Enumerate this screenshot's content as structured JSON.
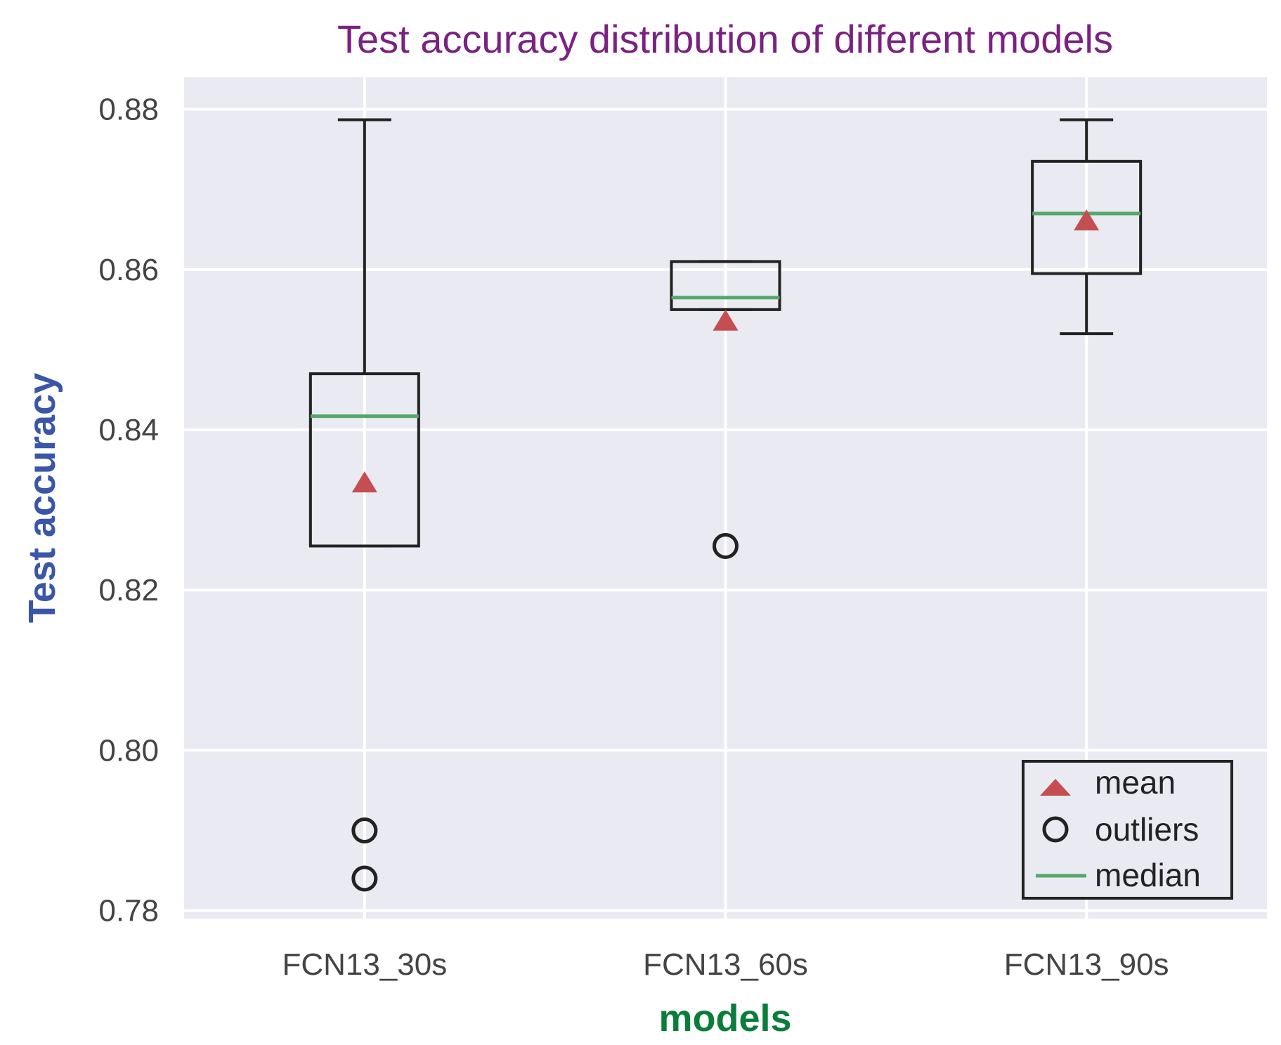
{
  "chart_data": {
    "type": "box",
    "title": "Test accuracy distribution of different models",
    "xlabel": "models",
    "ylabel": "Test accuracy",
    "categories": [
      "FCN13_30s",
      "FCN13_60s",
      "FCN13_90s"
    ],
    "ylim": [
      0.779,
      0.884
    ],
    "yticks": [
      0.78,
      0.8,
      0.82,
      0.84,
      0.86,
      0.88
    ],
    "ytick_labels": [
      "0.78",
      "0.80",
      "0.82",
      "0.84",
      "0.86",
      "0.88"
    ],
    "boxes": [
      {
        "category": "FCN13_30s",
        "whisker_low": 0.8255,
        "q1": 0.8255,
        "median": 0.8417,
        "q3": 0.847,
        "whisker_high": 0.8787,
        "mean": 0.8335,
        "outliers": [
          0.79,
          0.784
        ]
      },
      {
        "category": "FCN13_60s",
        "whisker_low": 0.855,
        "q1": 0.855,
        "median": 0.8565,
        "q3": 0.861,
        "whisker_high": 0.861,
        "mean": 0.8537,
        "outliers": [
          0.8255
        ]
      },
      {
        "category": "FCN13_90s",
        "whisker_low": 0.852,
        "q1": 0.8595,
        "median": 0.867,
        "q3": 0.8735,
        "whisker_high": 0.8787,
        "mean": 0.8662,
        "outliers": []
      }
    ],
    "legend": {
      "position": "lower-right",
      "entries": [
        {
          "label": "mean",
          "marker": "triangle"
        },
        {
          "label": "outliers",
          "marker": "circle"
        },
        {
          "label": "median",
          "marker": "line"
        }
      ]
    },
    "grid": true,
    "colors": {
      "background": "#eaeaf2",
      "grid": "#ffffff",
      "box": "#222222",
      "median": "#55a868",
      "mean": "#c44e52",
      "title": "#7b2183",
      "xlabel": "#0a7d3a",
      "ylabel": "#3a56a8"
    }
  }
}
